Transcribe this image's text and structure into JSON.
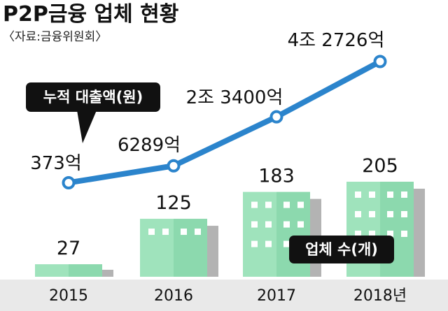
{
  "title": "P2P금융 업체 현황",
  "source": "〈자료:금융위원회〉",
  "chart_data": [
    {
      "type": "line",
      "name": "누적 대출액(원)",
      "categories": [
        "2015",
        "2016",
        "2017",
        "2018년"
      ],
      "values": [
        373,
        6289,
        23400,
        42726
      ],
      "unit": "억원",
      "value_labels": [
        "373억",
        "6289억",
        "2조 3400억",
        "4조 2726억"
      ],
      "legend_label": "누적 대출액(원)"
    },
    {
      "type": "bar",
      "name": "업체 수(개)",
      "categories": [
        "2015",
        "2016",
        "2017",
        "2018년"
      ],
      "values": [
        27,
        125,
        183,
        205
      ],
      "value_labels": [
        "27",
        "125",
        "183",
        "205"
      ],
      "legend_label": "업체 수(개)"
    }
  ],
  "colors": {
    "line": "#2b84cc",
    "building_front": "#9fe3bc",
    "building_shade": "#5fbf8c",
    "building_back": "#b3b3b3",
    "window": "#ffffff",
    "axis_band": "#e9e9e9",
    "tag_bg": "#111111"
  }
}
